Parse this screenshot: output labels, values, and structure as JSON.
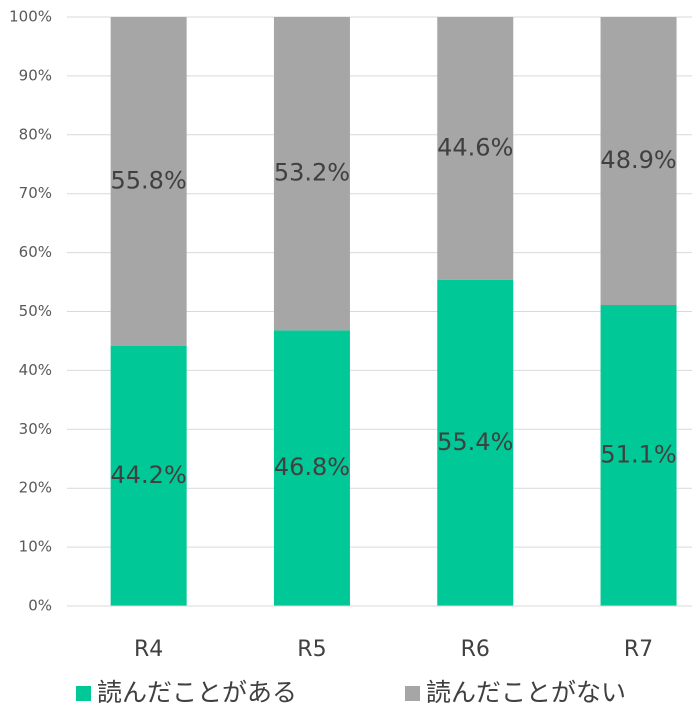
{
  "chart_data": {
    "type": "stacked_bar",
    "categories": [
      "R4",
      "R5",
      "R6",
      "R7"
    ],
    "series": [
      {
        "name": "読んだことがある",
        "color": "#00c896",
        "values": [
          44.2,
          46.8,
          55.4,
          51.1
        ],
        "value_labels": [
          "44.2%",
          "46.8%",
          "55.4%",
          "51.1%"
        ]
      },
      {
        "name": "読んだことがない",
        "color": "#a6a6a6",
        "values": [
          55.8,
          53.2,
          44.6,
          48.9
        ],
        "value_labels": [
          "55.8%",
          "53.2%",
          "44.6%",
          "48.9%"
        ]
      }
    ],
    "ylim": [
      0,
      100
    ],
    "yticks": [
      {
        "value": 0,
        "label": "0%"
      },
      {
        "value": 10,
        "label": "10%"
      },
      {
        "value": 20,
        "label": "20%"
      },
      {
        "value": 30,
        "label": "30%"
      },
      {
        "value": 40,
        "label": "40%"
      },
      {
        "value": 50,
        "label": "50%"
      },
      {
        "value": 60,
        "label": "60%"
      },
      {
        "value": 70,
        "label": "70%"
      },
      {
        "value": 80,
        "label": "80%"
      },
      {
        "value": 90,
        "label": "90%"
      },
      {
        "value": 100,
        "label": "100%"
      }
    ],
    "grid": true,
    "legend": "bottom"
  }
}
